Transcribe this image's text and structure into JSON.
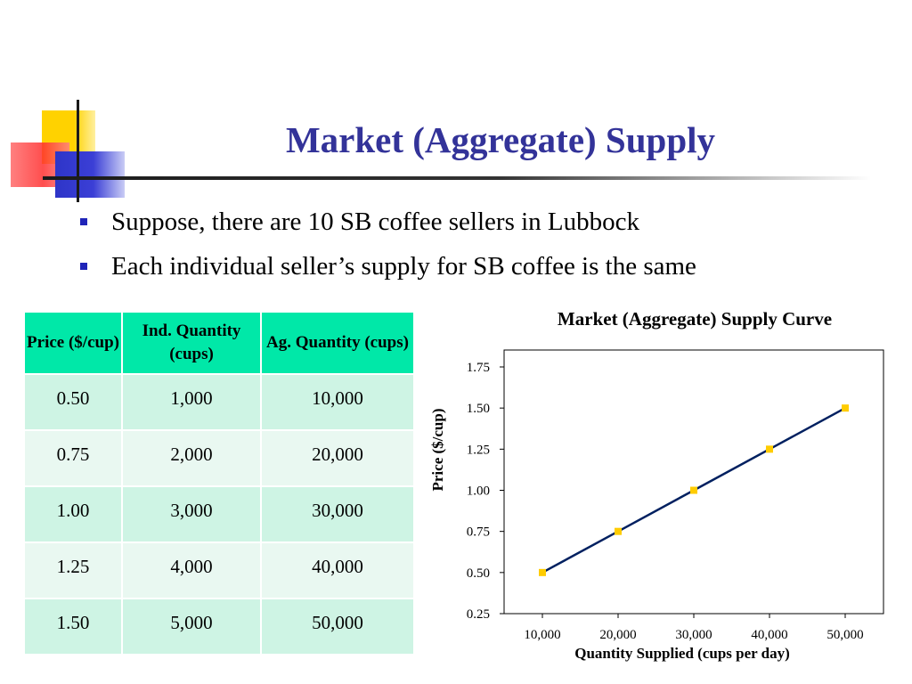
{
  "slide": {
    "title": "Market (Aggregate) Supply",
    "bullets": [
      "Suppose, there are 10 SB coffee sellers in Lubbock",
      "Each individual seller’s supply for SB coffee is the same"
    ]
  },
  "table": {
    "headers": [
      "Price ($/cup)",
      "Ind. Quantity (cups)",
      "Ag. Quantity (cups)"
    ],
    "rows": [
      [
        "0.50",
        "1,000",
        "10,000"
      ],
      [
        "0.75",
        "2,000",
        "20,000"
      ],
      [
        "1.00",
        "3,000",
        "30,000"
      ],
      [
        "1.25",
        "4,000",
        "40,000"
      ],
      [
        "1.50",
        "5,000",
        "50,000"
      ]
    ]
  },
  "chart_data": {
    "type": "line",
    "title": "Market (Aggregate) Supply Curve",
    "xlabel": "Quantity Supplied (cups per day)",
    "ylabel": "Price ($/cup)",
    "x": [
      10000,
      20000,
      30000,
      40000,
      50000
    ],
    "x_tick_labels": [
      "10,000",
      "20,000",
      "30,000",
      "40,000",
      "50,000"
    ],
    "y_ticks": [
      0.25,
      0.5,
      0.75,
      1.0,
      1.25,
      1.5,
      1.75
    ],
    "y_tick_labels": [
      "0.25",
      "0.50",
      "0.75",
      "1.00",
      "1.25",
      "1.50",
      "1.75"
    ],
    "series": [
      {
        "values": [
          0.5,
          0.75,
          1.0,
          1.25,
          1.5
        ],
        "line_color": "#002060",
        "marker_color": "#ffcc00"
      }
    ],
    "ylim": [
      0.25,
      1.75
    ],
    "grid": false
  }
}
